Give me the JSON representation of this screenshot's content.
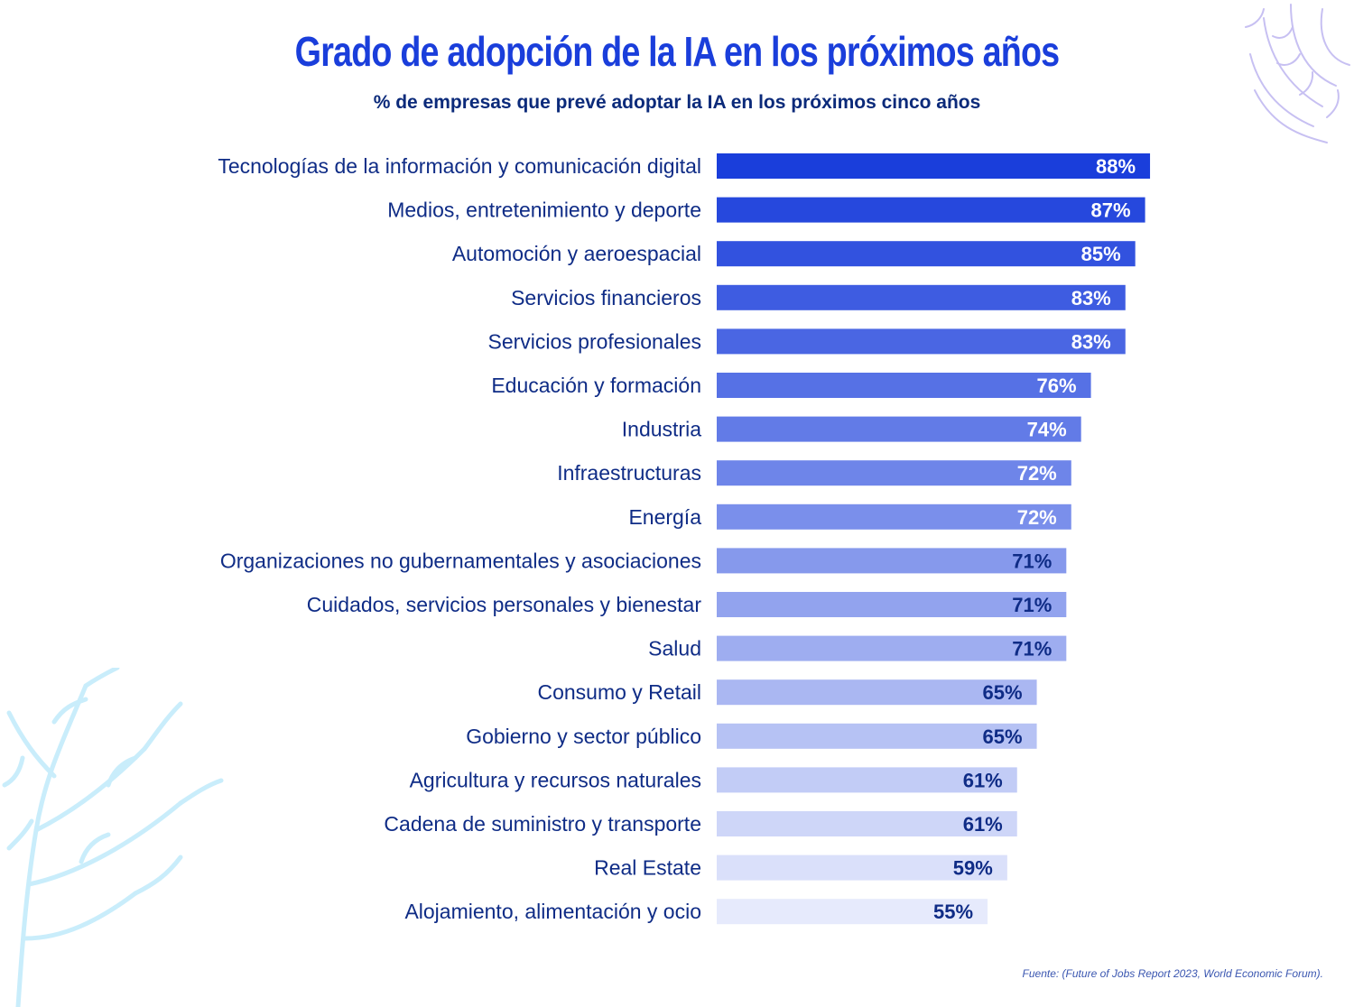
{
  "chart_data": {
    "type": "bar",
    "orientation": "horizontal",
    "title": "Grado de adopción de la IA en los próximos años",
    "subtitle": "% de empresas que prevé adoptar la IA en los próximos cinco años",
    "categories": [
      "Tecnologías de la información y comunicación digital",
      "Medios, entretenimiento y deporte",
      "Automoción y aeroespacial",
      "Servicios financieros",
      "Servicios profesionales",
      "Educación y formación",
      "Industria",
      "Infraestructuras",
      "Energía",
      "Organizaciones no gubernamentales y asociaciones",
      "Cuidados, servicios personales y bienestar",
      "Salud",
      "Consumo y Retail",
      "Gobierno y sector público",
      "Agricultura y recursos naturales",
      "Cadena de suministro y transporte",
      "Real Estate",
      "Alojamiento, alimentación y ocio"
    ],
    "values": [
      88,
      87,
      85,
      83,
      83,
      76,
      74,
      72,
      72,
      71,
      71,
      71,
      65,
      65,
      61,
      61,
      59,
      55
    ],
    "value_labels": [
      "88%",
      "87%",
      "85%",
      "83%",
      "83%",
      "76%",
      "74%",
      "72%",
      "72%",
      "71%",
      "71%",
      "71%",
      "65%",
      "65%",
      "61%",
      "61%",
      "59%",
      "55%"
    ],
    "xlim": [
      0,
      100
    ],
    "grid": false,
    "legend": "none",
    "colors": {
      "bar_start": "#1a3edb",
      "bar_end": "#e6eafc",
      "label_light": "#ffffff",
      "label_dark": "#0f2c86"
    }
  },
  "source": "Fuente: (Future of Jobs Report 2023, World Economic Forum)."
}
